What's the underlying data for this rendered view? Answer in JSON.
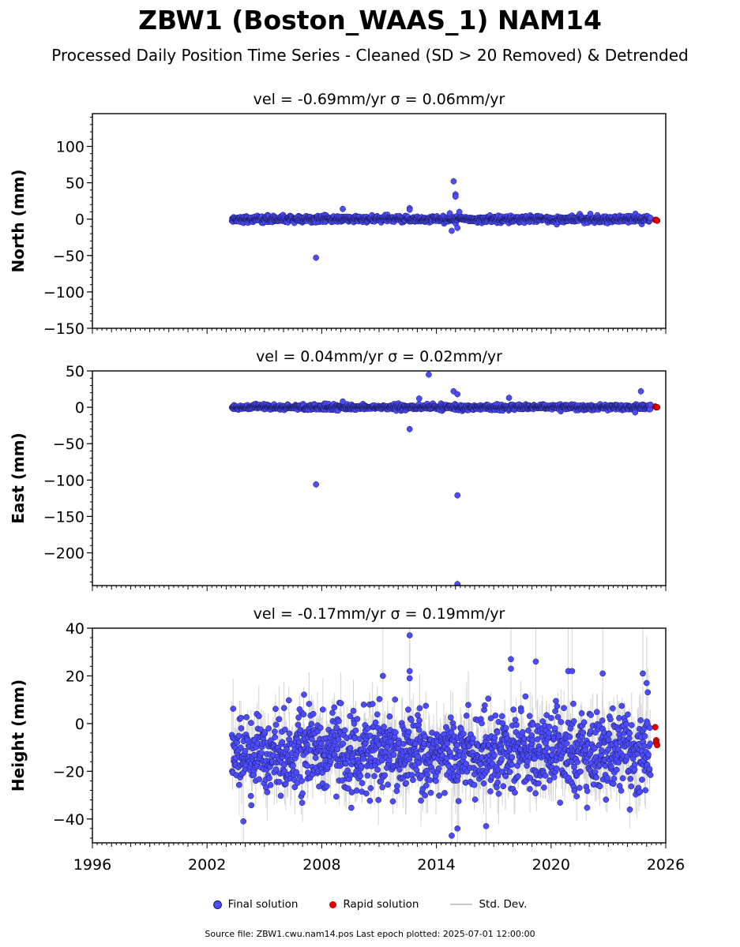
{
  "title": "ZBW1 (Boston_WAAS_1) NAM14",
  "subtitle": "Processed Daily Position Time Series - Cleaned (SD > 20 Removed) & Detrended",
  "colors": {
    "final": "#4b4bff",
    "rapid": "#e00000",
    "stddev": "#c8c8c8",
    "edge": "#1a1a55"
  },
  "chart_data": [
    {
      "type": "scatter",
      "panel": "north",
      "panel_title": "vel = -0.69mm/yr   σ = 0.06mm/yr",
      "ylabel": "North (mm)",
      "xlim": [
        1996,
        2026
      ],
      "ylim": [
        -150,
        145
      ],
      "yticks": [
        -150,
        -100,
        -50,
        0,
        50,
        100
      ],
      "data_start": 2003.3,
      "data_end": 2025.2,
      "noise_sd": 2.2,
      "outliers": [
        [
          2007.7,
          -53
        ],
        [
          2009.1,
          14
        ],
        [
          2012.6,
          15
        ],
        [
          2012.6,
          13
        ],
        [
          2014.9,
          52
        ],
        [
          2015.0,
          34
        ],
        [
          2015.0,
          31
        ],
        [
          2014.8,
          -16
        ],
        [
          2015.1,
          -12
        ],
        [
          2014.7,
          8
        ],
        [
          2015.2,
          10
        ]
      ],
      "rapid": [
        [
          2025.45,
          -1
        ],
        [
          2025.5,
          -1
        ],
        [
          2025.55,
          -2
        ]
      ]
    },
    {
      "type": "scatter",
      "panel": "east",
      "panel_title": "vel = 0.04mm/yr   σ = 0.02mm/yr",
      "ylabel": "East (mm)",
      "xlim": [
        1996,
        2026
      ],
      "ylim": [
        -245,
        50
      ],
      "yticks": [
        -200,
        -150,
        -100,
        -50,
        0,
        50
      ],
      "data_start": 2003.3,
      "data_end": 2025.2,
      "noise_sd": 1.8,
      "outliers": [
        [
          2007.7,
          -106
        ],
        [
          2012.6,
          -30
        ],
        [
          2013.6,
          45
        ],
        [
          2014.9,
          22
        ],
        [
          2015.1,
          18
        ],
        [
          2015.1,
          -121
        ],
        [
          2015.1,
          -243
        ],
        [
          2013.1,
          12
        ],
        [
          2009.1,
          8
        ],
        [
          2017.8,
          13
        ],
        [
          2024.7,
          22
        ],
        [
          2024.4,
          -7
        ]
      ],
      "rapid": [
        [
          2025.45,
          1
        ],
        [
          2025.5,
          0
        ],
        [
          2025.55,
          0
        ]
      ]
    },
    {
      "type": "scatter",
      "panel": "height",
      "panel_title": "vel = -0.17mm/yr   σ = 0.19mm/yr",
      "ylabel": "Height (mm)",
      "xlim": [
        1996,
        2026
      ],
      "ylim": [
        -50,
        40
      ],
      "yticks": [
        -40,
        -20,
        0,
        20,
        40
      ],
      "xticks": [
        1996,
        2002,
        2008,
        2014,
        2020,
        2026
      ],
      "data_start": 2003.3,
      "data_end": 2025.2,
      "noise_sd": 8,
      "noise_mean": -12,
      "outliers": [
        [
          2003.9,
          -41
        ],
        [
          2012.6,
          37
        ],
        [
          2012.6,
          22
        ],
        [
          2012.6,
          19
        ],
        [
          2011.2,
          20
        ],
        [
          2017.9,
          27
        ],
        [
          2017.9,
          23
        ],
        [
          2019.2,
          26
        ],
        [
          2020.9,
          22
        ],
        [
          2021.1,
          22
        ],
        [
          2022.7,
          21
        ],
        [
          2024.8,
          21
        ],
        [
          2025.0,
          17
        ],
        [
          2014.8,
          -47
        ],
        [
          2015.1,
          -44
        ],
        [
          2016.6,
          -43
        ]
      ],
      "rapid": [
        [
          2025.45,
          -1.5
        ],
        [
          2025.5,
          -7
        ],
        [
          2025.5,
          -8
        ],
        [
          2025.55,
          -9
        ]
      ]
    }
  ],
  "legend": {
    "final": "Final solution",
    "rapid": "Rapid solution",
    "stddev": "Std. Dev."
  },
  "footer": "Source file: ZBW1.cwu.nam14.pos  Last epoch plotted: 2025-07-01 12:00:00"
}
